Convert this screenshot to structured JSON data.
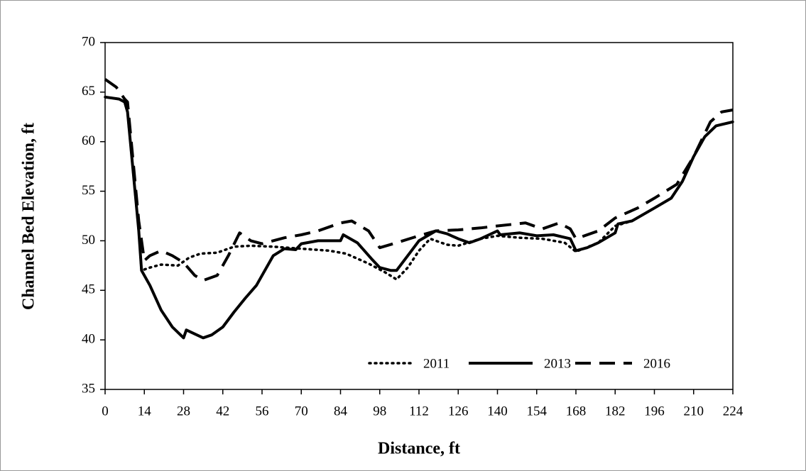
{
  "chart_data": {
    "type": "line",
    "xlabel": "Distance, ft",
    "ylabel": "Channel Bed Elevation, ft",
    "xlim": [
      0,
      224
    ],
    "ylim": [
      35,
      70
    ],
    "xticks": [
      0,
      14,
      28,
      42,
      56,
      70,
      84,
      98,
      112,
      126,
      140,
      154,
      168,
      182,
      196,
      210,
      224
    ],
    "yticks": [
      35,
      40,
      45,
      50,
      55,
      60,
      65,
      70
    ],
    "legend": "lower right",
    "series": [
      {
        "name": "2011",
        "color": "#000000",
        "style": "dotted",
        "x": [
          0,
          5,
          7,
          8,
          10,
          12,
          13,
          16,
          20,
          26,
          30,
          34,
          40,
          46,
          52,
          60,
          70,
          80,
          86,
          94,
          100,
          104,
          108,
          112,
          116,
          122,
          126,
          134,
          140,
          148,
          156,
          164,
          168,
          176,
          182,
          188,
          196,
          202,
          206,
          210,
          214,
          218,
          224
        ],
        "values": [
          64.5,
          64.3,
          64,
          63,
          57,
          51,
          47,
          47.3,
          47.6,
          47.5,
          48.3,
          48.7,
          48.8,
          49.4,
          49.5,
          49.4,
          49.2,
          49,
          48.7,
          47.7,
          46.8,
          46.1,
          47.3,
          49,
          50.2,
          49.6,
          49.5,
          50.2,
          50.5,
          50.3,
          50.2,
          49.8,
          48.9,
          49.8,
          51.5,
          52,
          53.3,
          54.3,
          56,
          58.5,
          60.5,
          61.6,
          62
        ]
      },
      {
        "name": "2013",
        "color": "#000000",
        "style": "solid",
        "x": [
          0,
          5,
          7,
          8,
          10,
          12,
          13,
          16,
          20,
          24,
          28,
          29,
          32,
          35,
          38,
          42,
          46,
          50,
          54,
          56,
          60,
          64,
          68,
          70,
          76,
          84,
          85,
          90,
          95,
          98,
          102,
          104,
          108,
          112,
          118,
          122,
          126,
          130,
          134,
          140,
          141,
          148,
          154,
          160,
          166,
          168,
          172,
          176,
          182,
          183,
          188,
          196,
          202,
          206,
          210,
          214,
          218,
          224
        ],
        "values": [
          64.5,
          64.3,
          64,
          63,
          57,
          51,
          47,
          45.5,
          43,
          41.3,
          40.2,
          41,
          40.6,
          40.2,
          40.5,
          41.3,
          42.8,
          44.2,
          45.5,
          46.5,
          48.5,
          49.2,
          49.1,
          49.7,
          50,
          50,
          50.6,
          49.8,
          48.2,
          47.3,
          47,
          47,
          48.5,
          50,
          51,
          50.7,
          50.2,
          49.8,
          50.2,
          51,
          50.6,
          50.8,
          50.5,
          50.6,
          50.2,
          49,
          49.3,
          49.8,
          50.8,
          51.7,
          52,
          53.3,
          54.3,
          56,
          58.5,
          60.5,
          61.6,
          62
        ]
      },
      {
        "name": "2016",
        "color": "#000000",
        "style": "dashed",
        "x": [
          0,
          4,
          7,
          8,
          10,
          12,
          14,
          16,
          20,
          24,
          28,
          32,
          35,
          40,
          44,
          48,
          52,
          56,
          64,
          70,
          76,
          84,
          88,
          94,
          98,
          104,
          112,
          118,
          126,
          134,
          140,
          150,
          156,
          162,
          166,
          168,
          176,
          182,
          190,
          196,
          204,
          210,
          216,
          220,
          224
        ],
        "values": [
          66.3,
          65.5,
          64.3,
          64,
          58,
          52,
          48,
          48.5,
          49,
          48.5,
          47.8,
          46.5,
          46,
          46.5,
          48.5,
          50.8,
          50,
          49.7,
          50.3,
          50.6,
          51,
          51.8,
          52,
          51,
          49.3,
          49.8,
          50.5,
          51,
          51.1,
          51.3,
          51.5,
          51.8,
          51.2,
          51.8,
          51.2,
          50.2,
          51,
          52.3,
          53.3,
          54.3,
          55.7,
          58.5,
          62,
          63,
          63.2
        ]
      }
    ]
  }
}
